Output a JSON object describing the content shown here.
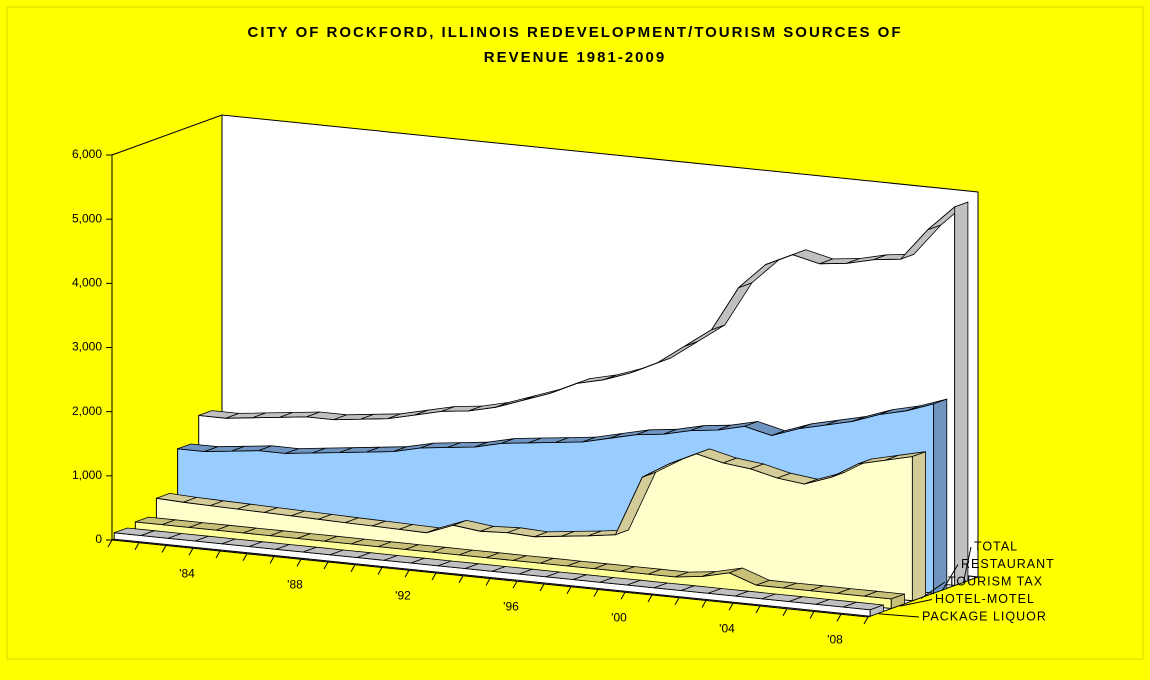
{
  "chart_data": {
    "type": "area3d",
    "title": [
      "CITY OF ROCKFORD, ILLINOIS REDEVELOPMENT/TOURISM SOURCES OF",
      "REVENUE 1981-2009"
    ],
    "categories": [
      null,
      null,
      null,
      "'84",
      null,
      null,
      null,
      "'88",
      null,
      null,
      null,
      "'92",
      null,
      null,
      null,
      "'96",
      null,
      null,
      null,
      "'00",
      null,
      null,
      null,
      "'04",
      null,
      null,
      null,
      "'08",
      null
    ],
    "ylim": [
      0,
      6000
    ],
    "yticks": [
      0,
      {
        "value": 1000,
        "label": "1,000"
      },
      {
        "value": 2000,
        "label": "2,000"
      },
      {
        "value": 3000,
        "label": "3,000"
      },
      {
        "value": 4000,
        "label": "4,000"
      },
      {
        "value": 5000,
        "label": "5,000"
      },
      {
        "value": 6000,
        "label": "6,000"
      }
    ],
    "series": [
      {
        "name": "PACKAGE LIQUOR",
        "color": "#ffffff",
        "top_color": "#c0c0c0",
        "values": [
          100,
          100,
          100,
          100,
          100,
          100,
          100,
          100,
          100,
          100,
          100,
          100,
          100,
          100,
          100,
          100,
          100,
          100,
          100,
          100,
          100,
          100,
          100,
          100,
          100,
          100,
          100,
          100,
          100
        ]
      },
      {
        "name": "HOTEL-MOTEL",
        "color": "#ffff99",
        "top_color": "#c8c078",
        "values": [
          150,
          150,
          150,
          150,
          150,
          150,
          150,
          150,
          150,
          150,
          150,
          150,
          150,
          150,
          150,
          150,
          150,
          150,
          150,
          150,
          150,
          200,
          300,
          150,
          150,
          150,
          150,
          150,
          150
        ]
      },
      {
        "name": "TOURISM TAX",
        "color": "#ffffcc",
        "top_color": "#d4cc98",
        "values": [
          400,
          380,
          370,
          360,
          350,
          340,
          330,
          320,
          310,
          300,
          290,
          450,
          400,
          420,
          400,
          450,
          500,
          560,
          1500,
          1750,
          1950,
          1850,
          1800,
          1700,
          1650,
          1800,
          2050,
          2150,
          2250
        ]
      },
      {
        "name": "RESTAURANT",
        "color": "#99ccff",
        "top_color": "#6f94bf",
        "values": [
          1050,
          1050,
          1100,
          1150,
          1150,
          1200,
          1250,
          1300,
          1350,
          1450,
          1500,
          1550,
          1650,
          1700,
          1750,
          1800,
          1900,
          2000,
          2050,
          2150,
          2200,
          2300,
          2200,
          2350,
          2450,
          2550,
          2700,
          2800,
          2950
        ]
      },
      {
        "name": "TOTAL",
        "color": "#ffffff",
        "top_color": "#c0c0c0",
        "values": [
          1450,
          1450,
          1500,
          1550,
          1600,
          1600,
          1650,
          1700,
          1800,
          1900,
          1950,
          2050,
          2200,
          2350,
          2550,
          2650,
          2800,
          3000,
          3300,
          3600,
          4300,
          4700,
          4900,
          4800,
          4850,
          4950,
          5000,
          5500,
          5900
        ]
      }
    ]
  }
}
